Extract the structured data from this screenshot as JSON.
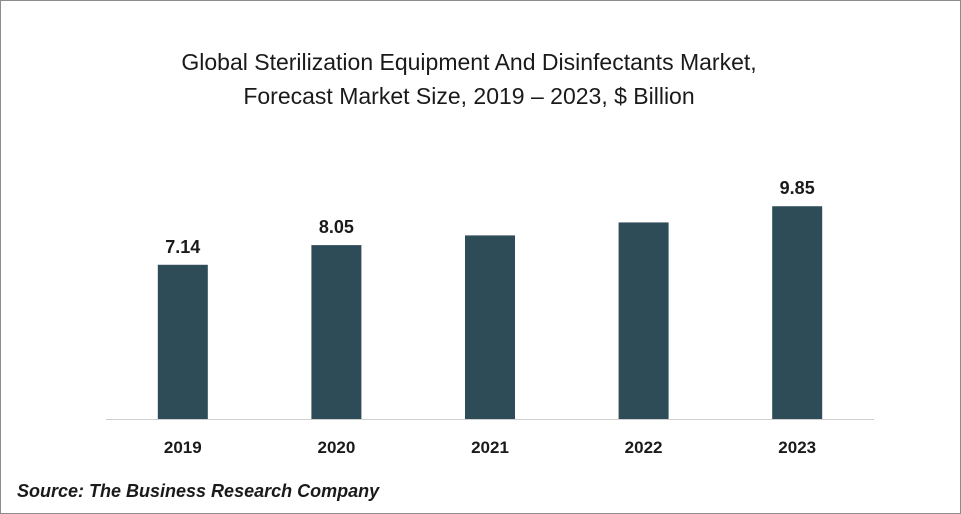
{
  "chart_data": {
    "type": "bar",
    "title_lines": [
      "Global Sterilization Equipment And Disinfectants Market,",
      "Forecast Market Size, 2019 – 2023, $ Billion"
    ],
    "categories": [
      "2019",
      "2020",
      "2021",
      "2022",
      "2023"
    ],
    "values": [
      7.14,
      8.05,
      8.5,
      9.1,
      9.85
    ],
    "data_labels": [
      "7.14",
      "8.05",
      "",
      "",
      "9.85"
    ],
    "xlabel": "",
    "ylabel": "",
    "ylim": [
      0,
      10.5
    ],
    "grid": false,
    "legend": "none",
    "bar_color": "#2e4b58"
  },
  "source": "Source: The Business Research Company"
}
